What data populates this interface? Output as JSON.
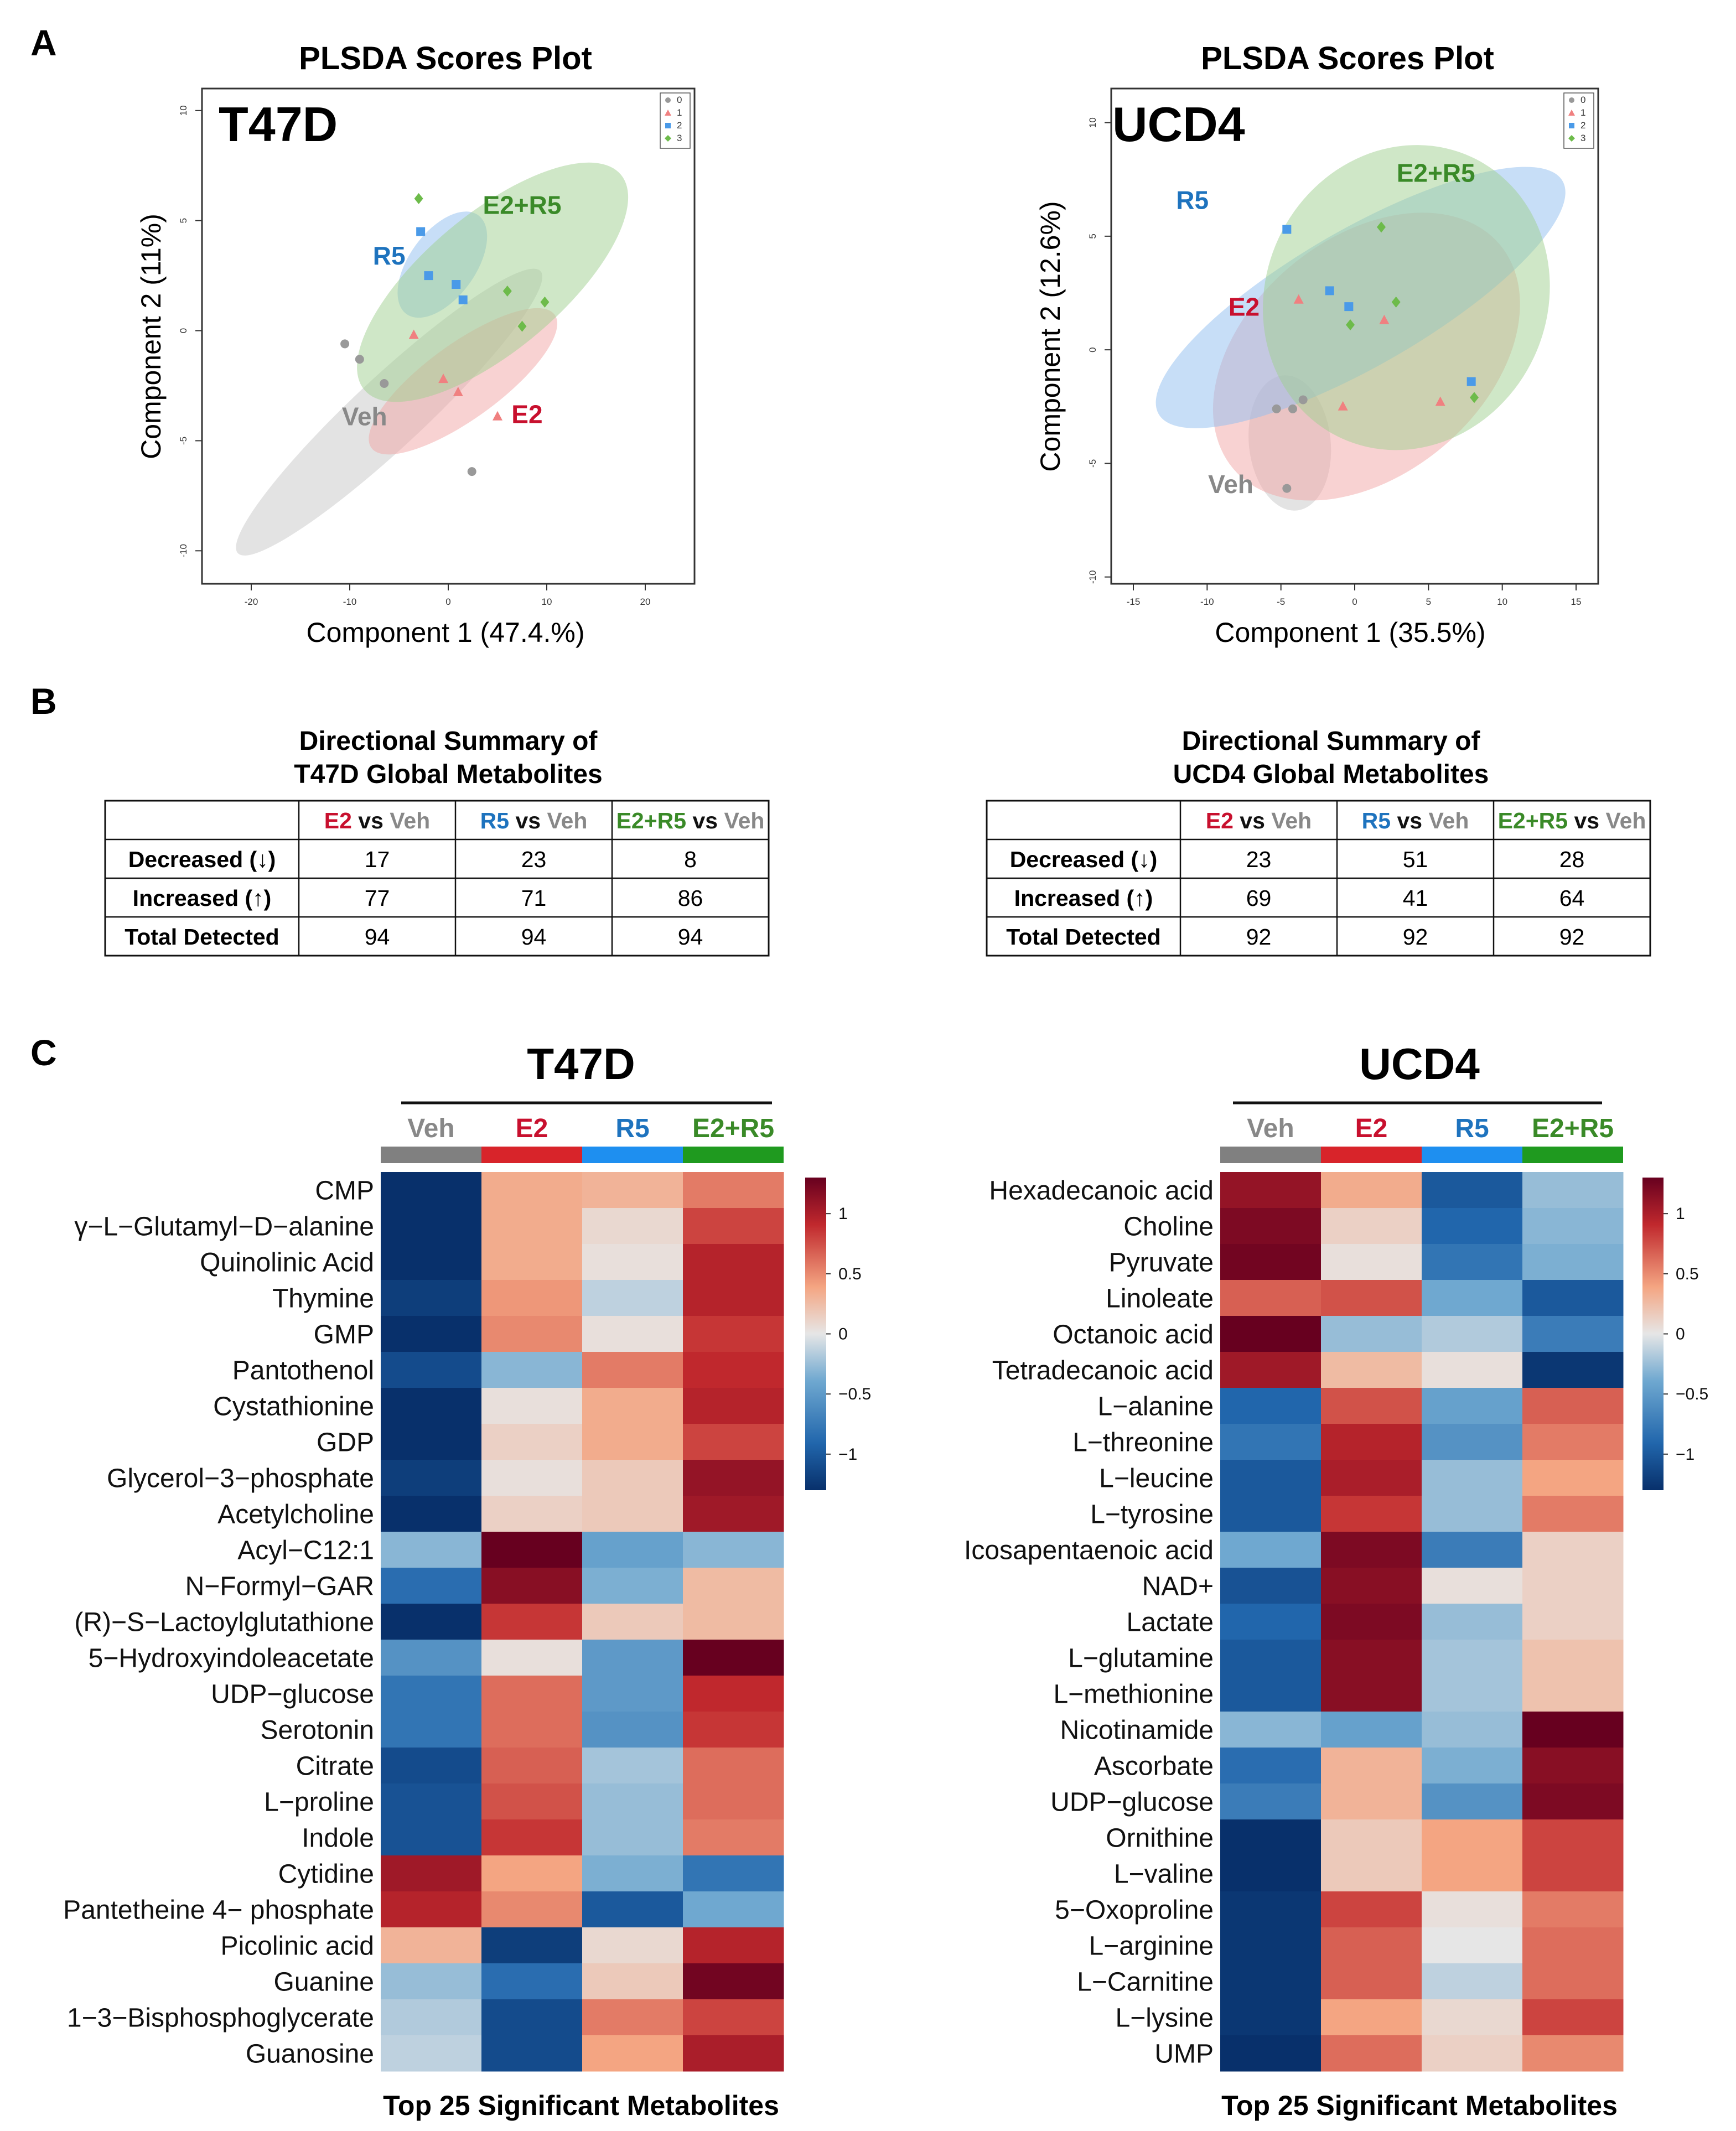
{
  "panel_labels": {
    "a": "A",
    "b": "B",
    "c": "C"
  },
  "group_colors": {
    "Veh": "#888888",
    "E2": "#c8102e",
    "R5": "#1e73be",
    "E2+R5": "#3a8a28"
  },
  "chart_data": [
    {
      "type": "scatter",
      "id": "pls_t47d",
      "title": "PLSDA Scores Plot",
      "cell_line": "T47D",
      "xlabel": "Component 1 (47.4.%)",
      "ylabel": "Component 2 (11%)",
      "xlim": [
        -25,
        25
      ],
      "ylim": [
        -11.5,
        11
      ],
      "xticks": [
        -20,
        -10,
        0,
        10,
        20
      ],
      "yticks": [
        -10,
        -5,
        0,
        5,
        10
      ],
      "legend": [
        "0",
        "1",
        "2",
        "3"
      ],
      "legend_position": "top-right",
      "series": [
        {
          "name": "Veh",
          "code": "0",
          "points": [
            [
              -10.5,
              -0.6
            ],
            [
              -9,
              -1.3
            ],
            [
              -6.5,
              -2.4
            ],
            [
              2.4,
              -6.4
            ]
          ],
          "ellipse": {
            "cx": -6,
            "cy": -3.7,
            "rx": 21,
            "ry": 1.6,
            "angle": -43
          }
        },
        {
          "name": "E2",
          "code": "1",
          "points": [
            [
              -3.5,
              -0.2
            ],
            [
              -0.5,
              -2.2
            ],
            [
              1,
              -2.8
            ],
            [
              5,
              -3.9
            ]
          ],
          "ellipse": {
            "cx": 1.5,
            "cy": -2.3,
            "rx": 11.5,
            "ry": 1.7,
            "angle": -36
          }
        },
        {
          "name": "R5",
          "code": "2",
          "points": [
            [
              -2.8,
              4.5
            ],
            [
              -2,
              2.5
            ],
            [
              0.8,
              2.1
            ],
            [
              1.5,
              1.4
            ]
          ],
          "ellipse": {
            "cx": -0.6,
            "cy": 3.0,
            "rx": 6.2,
            "ry": 1.5,
            "angle": -54
          }
        },
        {
          "name": "E2+R5",
          "code": "3",
          "points": [
            [
              -3,
              6
            ],
            [
              6,
              1.8
            ],
            [
              7.5,
              0.2
            ],
            [
              9.8,
              1.3
            ]
          ],
          "ellipse": {
            "cx": 4.5,
            "cy": 2.2,
            "rx": 17,
            "ry": 3.1,
            "angle": -40
          }
        }
      ],
      "labels": [
        {
          "text": "Veh",
          "x": -8.5,
          "y": -4.3
        },
        {
          "text": "E2",
          "x": 8,
          "y": -4.2
        },
        {
          "text": "R5",
          "x": -6,
          "y": 3.0
        },
        {
          "text": "E2+R5",
          "x": 7.5,
          "y": 5.3
        }
      ]
    },
    {
      "type": "scatter",
      "id": "pls_ucd4",
      "title": "PLSDA Scores Plot",
      "cell_line": "UCD4",
      "xlabel": "Component 1 (35.5%)",
      "ylabel": "Component 2 (12.6%)",
      "xlim": [
        -16.5,
        16.5
      ],
      "ylim": [
        -10.3,
        11.5
      ],
      "xticks": [
        -15,
        -10,
        -5,
        0,
        5,
        10,
        15
      ],
      "yticks": [
        -10,
        -5,
        0,
        5,
        10
      ],
      "legend": [
        "0",
        "1",
        "2",
        "3"
      ],
      "legend_position": "top-right",
      "series": [
        {
          "name": "Veh",
          "code": "0",
          "points": [
            [
              -5.3,
              -2.6
            ],
            [
              -4.2,
              -2.6
            ],
            [
              -3.5,
              -2.2
            ],
            [
              -4.6,
              -6.1
            ]
          ],
          "ellipse": {
            "cx": -4.4,
            "cy": -4.1,
            "rx": 4.6,
            "ry": 1.8,
            "angle": -96
          }
        },
        {
          "name": "E2",
          "code": "1",
          "points": [
            [
              -3.8,
              2.2
            ],
            [
              -0.8,
              -2.5
            ],
            [
              2,
              1.3
            ],
            [
              5.8,
              -2.3
            ]
          ],
          "ellipse": {
            "cx": 0.8,
            "cy": -0.3,
            "rx": 11.8,
            "ry": 5.2,
            "angle": -40
          }
        },
        {
          "name": "R5",
          "code": "2",
          "points": [
            [
              -4.6,
              5.3
            ],
            [
              -1.7,
              2.6
            ],
            [
              -0.4,
              1.9
            ],
            [
              7.9,
              -1.4
            ]
          ],
          "ellipse": {
            "cx": 0.4,
            "cy": 2.3,
            "rx": 15.8,
            "ry": 3.0,
            "angle": -30
          }
        },
        {
          "name": "E2+R5",
          "code": "3",
          "points": [
            [
              1.8,
              5.4
            ],
            [
              -0.3,
              1.1
            ],
            [
              2.8,
              2.1
            ],
            [
              8.1,
              -2.1
            ]
          ],
          "ellipse": {
            "cx": 3.5,
            "cy": 2.3,
            "rx": 10.5,
            "ry": 6.2,
            "angle": -65
          }
        }
      ],
      "labels": [
        {
          "text": "Veh",
          "x": -8.4,
          "y": -6.3
        },
        {
          "text": "E2",
          "x": -7.5,
          "y": 1.5
        },
        {
          "text": "R5",
          "x": -11,
          "y": 6.2
        },
        {
          "text": "E2+R5",
          "x": 5.5,
          "y": 7.4
        }
      ]
    },
    {
      "type": "table",
      "id": "summary_t47d",
      "title_line1": "Directional Summary of",
      "title_line2": "T47D Global Metabolites",
      "header_vs": "vs",
      "columns": [
        [
          "E2",
          "Veh"
        ],
        [
          "R5",
          "Veh"
        ],
        [
          "E2+R5",
          "Veh"
        ]
      ],
      "rows": [
        {
          "label": "Decreased (↓)",
          "values": [
            17,
            23,
            8
          ]
        },
        {
          "label": "Increased (↑)",
          "values": [
            77,
            71,
            86
          ]
        },
        {
          "label": "Total Detected",
          "values": [
            94,
            94,
            94
          ]
        }
      ]
    },
    {
      "type": "table",
      "id": "summary_ucd4",
      "title_line1": "Directional Summary of",
      "title_line2": "UCD4 Global Metabolites",
      "header_vs": "vs",
      "columns": [
        [
          "E2",
          "Veh"
        ],
        [
          "R5",
          "Veh"
        ],
        [
          "E2+R5",
          "Veh"
        ]
      ],
      "rows": [
        {
          "label": "Decreased (↓)",
          "values": [
            23,
            51,
            28
          ]
        },
        {
          "label": "Increased (↑)",
          "values": [
            69,
            41,
            64
          ]
        },
        {
          "label": "Total Detected",
          "values": [
            92,
            92,
            92
          ]
        }
      ]
    },
    {
      "type": "heatmap",
      "id": "heat_t47d",
      "title": "T47D",
      "footer": "Top 25 Significant Metabolites",
      "columns": [
        "Veh",
        "E2",
        "R5",
        "E2+R5"
      ],
      "legend_ticks": [
        1,
        0.5,
        0,
        -0.5,
        -1
      ],
      "legend_labels": [
        "1",
        "0.5",
        "0",
        "−0.5",
        "−1"
      ],
      "vmin": -1.3,
      "vmax": 1.3,
      "rows": [
        {
          "name": "CMP",
          "values": [
            -1.3,
            0.4,
            0.35,
            0.6
          ]
        },
        {
          "name": "γ−L−Glutamyl−D−alanine",
          "values": [
            -1.3,
            0.4,
            0.1,
            0.8
          ]
        },
        {
          "name": "Quinolinic Acid",
          "values": [
            -1.3,
            0.4,
            0.05,
            0.95
          ]
        },
        {
          "name": "Thymine",
          "values": [
            -1.2,
            0.5,
            -0.15,
            0.95
          ]
        },
        {
          "name": "GMP",
          "values": [
            -1.3,
            0.55,
            0.05,
            0.85
          ]
        },
        {
          "name": "Pantothenol",
          "values": [
            -1.1,
            -0.35,
            0.6,
            0.9
          ]
        },
        {
          "name": "Cystathionine",
          "values": [
            -1.3,
            0.05,
            0.4,
            0.95
          ]
        },
        {
          "name": "GDP",
          "values": [
            -1.3,
            0.15,
            0.4,
            0.8
          ]
        },
        {
          "name": "Glycerol−3−phosphate",
          "values": [
            -1.2,
            0.05,
            0.2,
            1.1
          ]
        },
        {
          "name": "Acetylcholine",
          "values": [
            -1.3,
            0.15,
            0.2,
            1.05
          ]
        },
        {
          "name": "Acyl−C12:1",
          "values": [
            -0.35,
            1.3,
            -0.5,
            -0.35
          ]
        },
        {
          "name": "N−Formyl−GAR",
          "values": [
            -0.85,
            1.15,
            -0.4,
            0.3
          ]
        },
        {
          "name": "(R)−S−Lactoylglutathione",
          "values": [
            -1.3,
            0.85,
            0.2,
            0.3
          ]
        },
        {
          "name": "5−Hydroxyindoleacetate",
          "values": [
            -0.6,
            0.05,
            -0.55,
            1.3
          ]
        },
        {
          "name": "UDP−glucose",
          "values": [
            -0.8,
            0.65,
            -0.55,
            0.9
          ]
        },
        {
          "name": "Serotonin",
          "values": [
            -0.8,
            0.65,
            -0.6,
            0.85
          ]
        },
        {
          "name": "Citrate",
          "values": [
            -1.1,
            0.7,
            -0.25,
            0.65
          ]
        },
        {
          "name": "L−proline",
          "values": [
            -1.05,
            0.75,
            -0.3,
            0.65
          ]
        },
        {
          "name": "Indole",
          "values": [
            -1.05,
            0.85,
            -0.3,
            0.6
          ]
        },
        {
          "name": "Cytidine",
          "values": [
            1.05,
            0.45,
            -0.4,
            -0.8
          ]
        },
        {
          "name": "Pantetheine 4− phosphate",
          "values": [
            0.95,
            0.55,
            -1.0,
            -0.45
          ]
        },
        {
          "name": "Picolinic acid",
          "values": [
            0.35,
            -1.2,
            0.1,
            0.95
          ]
        },
        {
          "name": "Guanine",
          "values": [
            -0.3,
            -0.85,
            0.2,
            1.25
          ]
        },
        {
          "name": "1−3−Bisphosphoglycerate",
          "values": [
            -0.2,
            -1.1,
            0.6,
            0.8
          ]
        },
        {
          "name": "Guanosine",
          "values": [
            -0.15,
            -1.1,
            0.45,
            1.0
          ]
        }
      ]
    },
    {
      "type": "heatmap",
      "id": "heat_ucd4",
      "title": "UCD4",
      "footer": "Top 25 Significant Metabolites",
      "columns": [
        "Veh",
        "E2",
        "R5",
        "E2+R5"
      ],
      "legend_ticks": [
        1,
        0.5,
        0,
        -0.5,
        -1
      ],
      "legend_labels": [
        "1",
        "0.5",
        "0",
        "−0.5",
        "−1"
      ],
      "vmin": -1.3,
      "vmax": 1.3,
      "rows": [
        {
          "name": "Hexadecanoic acid",
          "values": [
            1.1,
            0.4,
            -1.0,
            -0.3
          ]
        },
        {
          "name": "Choline",
          "values": [
            1.2,
            0.15,
            -0.9,
            -0.35
          ]
        },
        {
          "name": "Pyruvate",
          "values": [
            1.25,
            0.05,
            -0.8,
            -0.4
          ]
        },
        {
          "name": "Linoleate",
          "values": [
            0.7,
            0.75,
            -0.45,
            -1.0
          ]
        },
        {
          "name": "Octanoic acid",
          "values": [
            1.3,
            -0.3,
            -0.2,
            -0.75
          ]
        },
        {
          "name": "Tetradecanoic acid",
          "values": [
            1.05,
            0.3,
            0.05,
            -1.25
          ]
        },
        {
          "name": "L−alanine",
          "values": [
            -0.9,
            0.75,
            -0.5,
            0.7
          ]
        },
        {
          "name": "L−threonine",
          "values": [
            -0.8,
            0.95,
            -0.6,
            0.6
          ]
        },
        {
          "name": "L−leucine",
          "values": [
            -1.0,
            1.0,
            -0.3,
            0.45
          ]
        },
        {
          "name": "L−tyrosine",
          "values": [
            -1.0,
            0.85,
            -0.3,
            0.6
          ]
        },
        {
          "name": "Icosapentaenoic acid",
          "values": [
            -0.45,
            1.2,
            -0.75,
            0.15
          ]
        },
        {
          "name": "NAD+",
          "values": [
            -1.05,
            1.15,
            0.05,
            0.15
          ]
        },
        {
          "name": "Lactate",
          "values": [
            -0.9,
            1.2,
            -0.3,
            0.15
          ]
        },
        {
          "name": "L−glutamine",
          "values": [
            -1.0,
            1.15,
            -0.25,
            0.25
          ]
        },
        {
          "name": "L−methionine",
          "values": [
            -1.0,
            1.15,
            -0.25,
            0.25
          ]
        },
        {
          "name": "Nicotinamide",
          "values": [
            -0.35,
            -0.5,
            -0.3,
            1.3
          ]
        },
        {
          "name": "Ascorbate",
          "values": [
            -0.85,
            0.35,
            -0.4,
            1.15
          ]
        },
        {
          "name": "UDP−glucose",
          "values": [
            -0.75,
            0.35,
            -0.6,
            1.2
          ]
        },
        {
          "name": "Ornithine",
          "values": [
            -1.3,
            0.2,
            0.45,
            0.8
          ]
        },
        {
          "name": "L−valine",
          "values": [
            -1.3,
            0.2,
            0.45,
            0.8
          ]
        },
        {
          "name": "5−Oxoproline",
          "values": [
            -1.25,
            0.8,
            0.05,
            0.6
          ]
        },
        {
          "name": "L−arginine",
          "values": [
            -1.25,
            0.7,
            0.0,
            0.65
          ]
        },
        {
          "name": "L−Carnitine",
          "values": [
            -1.25,
            0.7,
            -0.15,
            0.65
          ]
        },
        {
          "name": "L−lysine",
          "values": [
            -1.25,
            0.45,
            0.1,
            0.8
          ]
        },
        {
          "name": "UMP",
          "values": [
            -1.3,
            0.65,
            0.15,
            0.55
          ]
        }
      ]
    }
  ]
}
